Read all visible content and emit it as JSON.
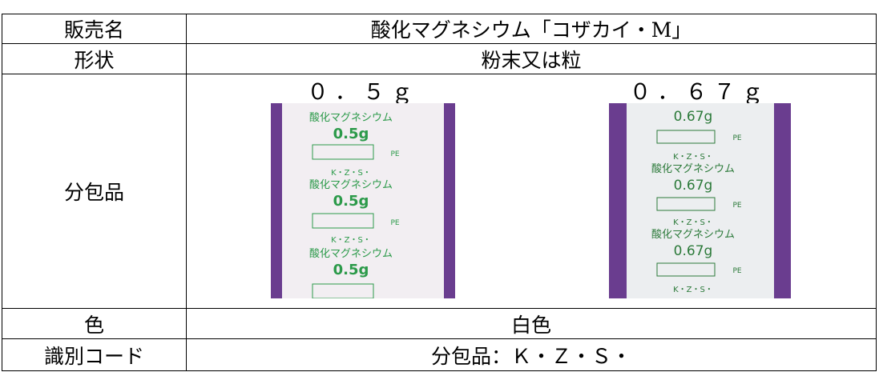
{
  "table": {
    "rows": [
      [
        "販売名",
        "酸化マグネシウム「コザカイ・M」"
      ],
      [
        "形状",
        "粉末又は粒"
      ],
      [
        "分包品",
        null
      ],
      [
        "色",
        "白色"
      ],
      [
        "識別コード",
        "分包品：Ｋ・Ｚ・Ｓ・"
      ]
    ],
    "packets": [
      {
        "label": "０．５ｇ",
        "name": "酸化マグネシウム",
        "dose": "0.5g",
        "code": "K・Z・S・",
        "material": "PE"
      },
      {
        "label": "０．６７ｇ",
        "name": "酸化マグネシウム",
        "dose": "0.67g",
        "code": "K・Z・S・",
        "material": "PE"
      }
    ]
  }
}
